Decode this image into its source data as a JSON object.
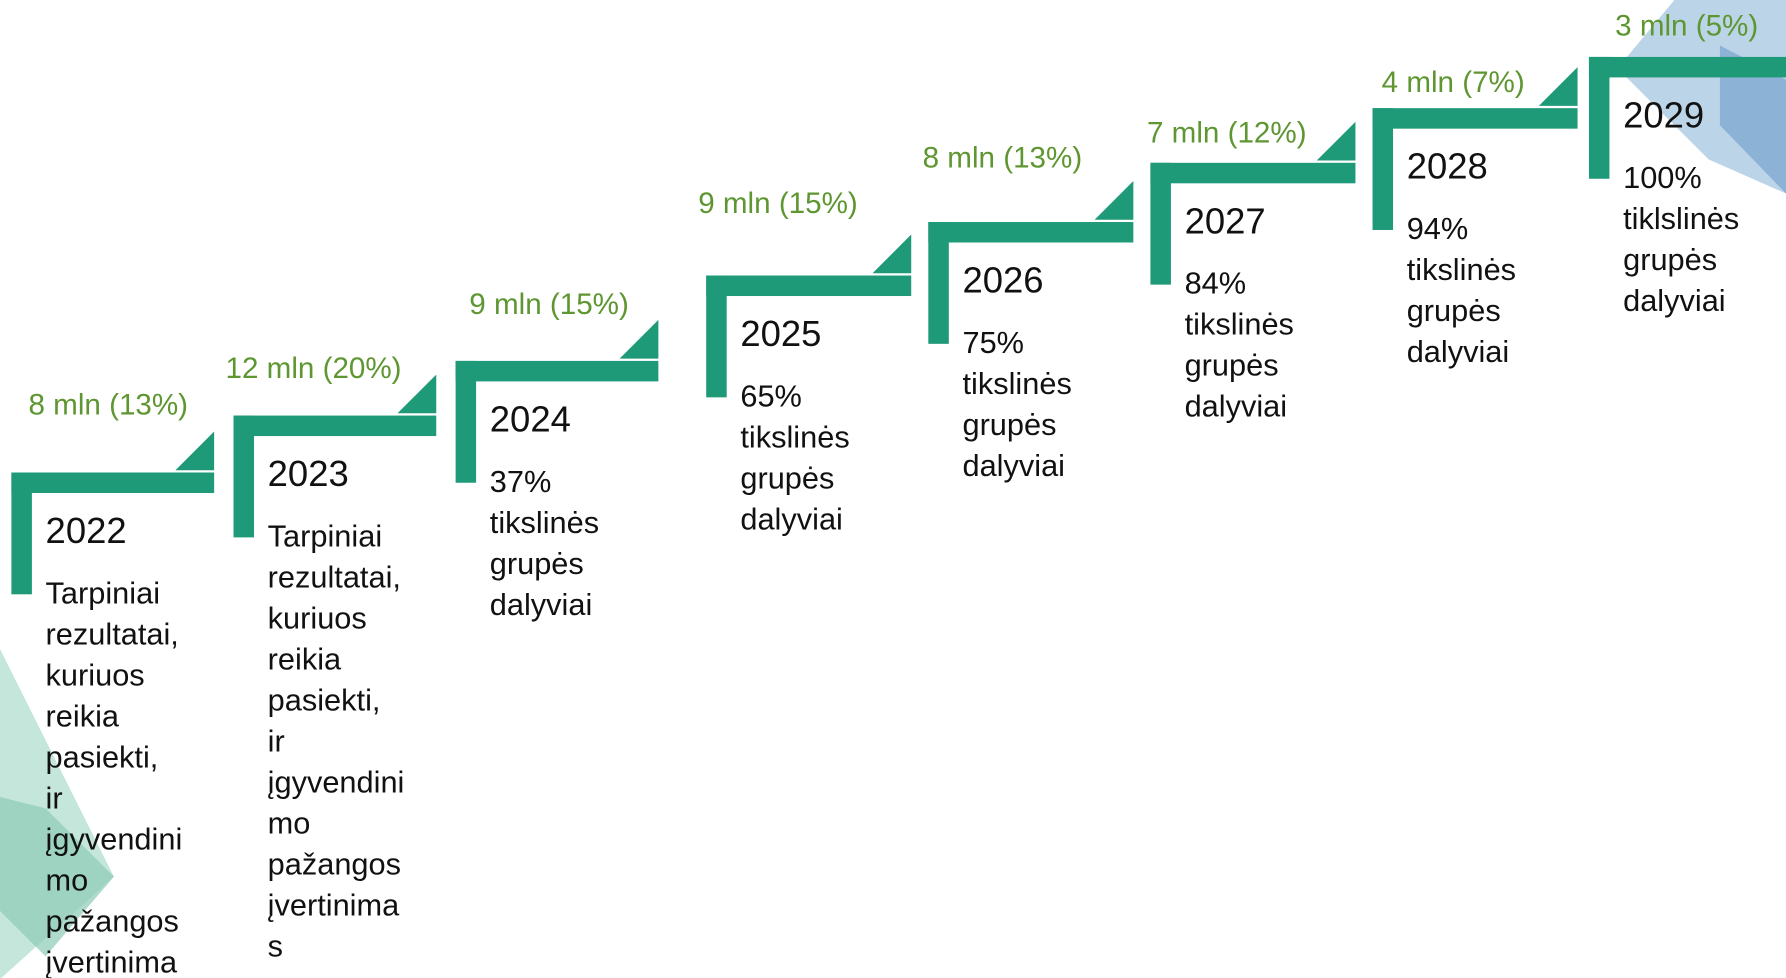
{
  "steps": [
    {
      "label": "8 mln (13%)",
      "year": "2022",
      "lines": [
        "Tarpiniai",
        "rezultatai,",
        "kuriuos",
        "reikia",
        "pasiekti,",
        "ir",
        "įgyvendini",
        "mo",
        "pažangos",
        "įvertinima"
      ]
    },
    {
      "label": "12 mln (20%)",
      "year": "2023",
      "lines": [
        "Tarpiniai",
        "rezultatai,",
        "kuriuos",
        "reikia",
        "pasiekti,",
        "ir",
        "įgyvendini",
        "mo",
        "pažangos",
        "įvertinima",
        "s"
      ]
    },
    {
      "label": "9 mln (15%)",
      "year": "2024",
      "lines": [
        "37%",
        "tikslinės",
        "grupės",
        "dalyviai"
      ]
    },
    {
      "label": "9 mln (15%)",
      "year": "2025",
      "lines": [
        "65%",
        "tikslinės",
        "grupės",
        "dalyviai"
      ]
    },
    {
      "label": "8 mln (13%)",
      "year": "2026",
      "lines": [
        "75%",
        "tikslinės",
        "grupės",
        "dalyviai"
      ]
    },
    {
      "label": "7 mln (12%)",
      "year": "2027",
      "lines": [
        "84%",
        "tikslinės",
        "grupės",
        "dalyviai"
      ]
    },
    {
      "label": "4 mln (7%)",
      "year": "2028",
      "lines": [
        "94%",
        "tikslinės",
        "grupės",
        "dalyviai"
      ]
    },
    {
      "label": "3 mln (5%)",
      "year": "2029",
      "lines": [
        "100%",
        "tiklslinės",
        "grupės",
        "dalyviai"
      ]
    }
  ]
}
